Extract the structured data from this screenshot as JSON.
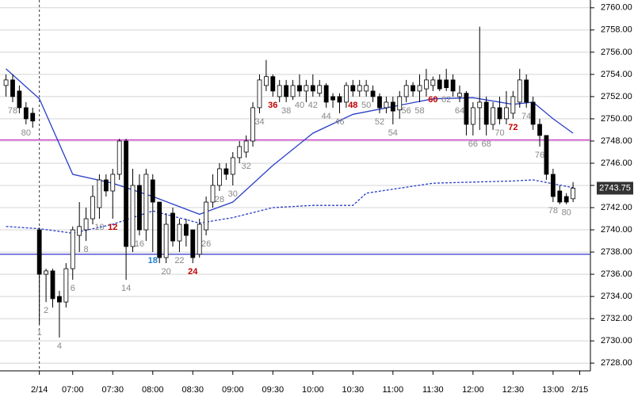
{
  "chart_data": {
    "type": "candlestick",
    "x": [
      -4,
      -3,
      -2,
      -1,
      0,
      1,
      2,
      3,
      4,
      5,
      6,
      7,
      8,
      9,
      10,
      11,
      12,
      13,
      14,
      15,
      16,
      17,
      18,
      19,
      20,
      21,
      22,
      23,
      24,
      25,
      26,
      27,
      28,
      29,
      30,
      31,
      32,
      33,
      34,
      35,
      36,
      37,
      38,
      39,
      40,
      41,
      42,
      43,
      44,
      45,
      46,
      47,
      48,
      49,
      50,
      51,
      52,
      53,
      54,
      55,
      56,
      57,
      58,
      59,
      60,
      61,
      62,
      63,
      64,
      65,
      66,
      67,
      68,
      69,
      70,
      71,
      72,
      73,
      74,
      75,
      76,
      77,
      78,
      79,
      80,
      81
    ],
    "open": [
      2753,
      2753.5,
      2752.5,
      2751,
      2750.5,
      2740,
      2736,
      2736.3,
      2734,
      2733.5,
      2736.5,
      2739.5,
      2740,
      2741,
      2742,
      2744.5,
      2743.5,
      2745,
      2748,
      2738.5,
      2744,
      2740,
      2744.5,
      2742.5,
      2737.5,
      2741.5,
      2739,
      2740.5,
      2740,
      2737.8,
      2740,
      2742.5,
      2744,
      2745.5,
      2745,
      2746.5,
      2747,
      2748,
      2751,
      2753,
      2753.8,
      2752,
      2753,
      2752,
      2753,
      2752.5,
      2753,
      2752.3,
      2753,
      2752,
      2752,
      2751.5,
      2753,
      2752.5,
      2752.5,
      2752.5,
      2752,
      2751,
      2751.5,
      2750.8,
      2752,
      2753,
      2752.5,
      2752.7,
      2753,
      2753.5,
      2753.5,
      2753.5,
      2752,
      2752.3,
      2749.5,
      2751,
      2751.5,
      2749.5,
      2751,
      2750,
      2750.5,
      2751.5,
      2753.5,
      2751.5,
      2749.5,
      2748.5,
      2745,
      2743.5,
      2743,
      2742.8
    ],
    "high": [
      2754,
      2754,
      2753,
      2751.5,
      2751,
      2740.2,
      2736.5,
      2736.5,
      2734.5,
      2737,
      2740.3,
      2742.5,
      2742,
      2744,
      2745,
      2745,
      2745.5,
      2748.2,
      2748.2,
      2745.5,
      2745,
      2745.5,
      2745,
      2742.5,
      2741.5,
      2742,
      2741,
      2741,
      2740,
      2741,
      2743,
      2745,
      2746,
      2746,
      2747,
      2748,
      2748.5,
      2751.5,
      2754,
      2755.3,
      2754,
      2753.5,
      2753.5,
      2753.5,
      2754,
      2753.5,
      2754,
      2753.5,
      2753.2,
      2752.3,
      2752.3,
      2753.3,
      2753.5,
      2753.5,
      2753.5,
      2753,
      2752.3,
      2752,
      2752,
      2752.5,
      2753.5,
      2753.3,
      2754,
      2754.5,
      2753.8,
      2754,
      2754.5,
      2754,
      2753,
      2752.5,
      2751.5,
      2758.3,
      2752,
      2751.5,
      2752,
      2752.5,
      2752.5,
      2754.5,
      2754,
      2752,
      2750,
      2748.5,
      2745.5,
      2744,
      2743.3,
      2744.3
    ],
    "low": [
      2752,
      2751.5,
      2750.5,
      2749.5,
      2749.2,
      2731.5,
      2733.5,
      2733,
      2730.3,
      2733,
      2735.5,
      2738,
      2739,
      2740.5,
      2741,
      2743,
      2741,
      2744.5,
      2735.5,
      2738,
      2739.5,
      2739,
      2738,
      2737,
      2737,
      2738.5,
      2738,
      2738.5,
      2737,
      2737.5,
      2739.5,
      2742,
      2743.5,
      2744.5,
      2744,
      2746,
      2746.5,
      2747.5,
      2750.5,
      2752.5,
      2752,
      2751.5,
      2751.5,
      2751.7,
      2752,
      2751.5,
      2752,
      2752,
      2751,
      2751,
      2750.5,
      2751,
      2752,
      2752,
      2752,
      2751.5,
      2750.5,
      2750.5,
      2749.5,
      2750,
      2751.5,
      2752,
      2751.5,
      2752,
      2752.5,
      2752.5,
      2752.5,
      2752,
      2751.5,
      2748.5,
      2748.5,
      2749,
      2748.5,
      2749,
      2749.5,
      2749.5,
      2750,
      2751,
      2751,
      2749,
      2747.5,
      2744.5,
      2742.5,
      2742.3,
      2742.3,
      2742.5
    ],
    "close": [
      2753.5,
      2752,
      2751,
      2750,
      2749.8,
      2736,
      2736.3,
      2733.8,
      2733.5,
      2736.5,
      2740,
      2740.3,
      2741,
      2743,
      2744.5,
      2743.5,
      2745,
      2748,
      2738.5,
      2744,
      2740,
      2745,
      2742.5,
      2737.5,
      2740.5,
      2739,
      2740.5,
      2739.5,
      2737.5,
      2740.5,
      2742.5,
      2744,
      2745.5,
      2745,
      2746.5,
      2747.5,
      2748,
      2751,
      2753.5,
      2753.8,
      2752.5,
      2753,
      2752,
      2753,
      2752.5,
      2753,
      2752.5,
      2753,
      2751.5,
      2751.7,
      2751.5,
      2753,
      2752.5,
      2753,
      2753,
      2752,
      2751,
      2751.5,
      2750.7,
      2752,
      2753,
      2752.5,
      2753,
      2753.5,
      2753.5,
      2752.7,
      2752.8,
      2752.5,
      2752.3,
      2749.5,
      2751,
      2751.5,
      2749.5,
      2751,
      2750,
      2751,
      2752,
      2753.5,
      2751.5,
      2749.5,
      2748.5,
      2745,
      2743,
      2742.5,
      2742.5,
      2743.75
    ],
    "up_color": "#ffffff",
    "down_color": "#000000",
    "edge_color": "#000000",
    "lines": [
      {
        "color": "#2a3fc8",
        "dash": false,
        "x": [
          -4,
          1,
          6,
          12,
          18,
          25,
          30,
          36,
          42,
          48,
          60,
          66,
          72,
          75,
          78,
          81
        ],
        "values": [
          2754.5,
          2751.8,
          2745,
          2744.2,
          2743,
          2741.4,
          2742.5,
          2745.8,
          2748.7,
          2750.4,
          2751.8,
          2751.9,
          2751.3,
          2751.5,
          2750,
          2748.7
        ]
      },
      {
        "color": "#2a3fc8",
        "dash": true,
        "x": [
          -4,
          1,
          6,
          12,
          18,
          25,
          30,
          36,
          42,
          48,
          50,
          60,
          72,
          75,
          81
        ],
        "values": [
          2740.3,
          2740.1,
          2739.7,
          2740.5,
          2741.7,
          2740.6,
          2741.1,
          2742,
          2742.2,
          2742.2,
          2743.3,
          2744.2,
          2744.4,
          2744.5,
          2743.8
        ]
      }
    ],
    "hlines": [
      {
        "value": 2748.1,
        "color": "#d040d0"
      },
      {
        "value": 2737.8,
        "color": "#3333cc"
      }
    ],
    "last_price": {
      "value": 2743.75,
      "label": "2743.75"
    },
    "bar_labels": [
      {
        "x": -3,
        "text": "78",
        "color": "#888888"
      },
      {
        "x": -1,
        "text": "80",
        "color": "#888888"
      },
      {
        "x": 1,
        "text": "1",
        "color": "#888888"
      },
      {
        "x": 2,
        "text": "2",
        "color": "#888888"
      },
      {
        "x": 4,
        "text": "4",
        "color": "#888888"
      },
      {
        "x": 6,
        "text": "6",
        "color": "#888888"
      },
      {
        "x": 8,
        "text": "8",
        "color": "#888888"
      },
      {
        "x": 10,
        "text": "10",
        "color": "#888888"
      },
      {
        "x": 12,
        "text": "12",
        "color": "#c00000"
      },
      {
        "x": 14,
        "text": "14",
        "color": "#888888"
      },
      {
        "x": 16,
        "text": "16",
        "color": "#888888"
      },
      {
        "x": 18,
        "text": "18",
        "color": "#1f7fd0"
      },
      {
        "x": 20,
        "text": "20",
        "color": "#888888"
      },
      {
        "x": 22,
        "text": "22",
        "color": "#888888"
      },
      {
        "x": 24,
        "text": "24",
        "color": "#c00000"
      },
      {
        "x": 26,
        "text": "26",
        "color": "#888888"
      },
      {
        "x": 28,
        "text": "28",
        "color": "#888888"
      },
      {
        "x": 30,
        "text": "30",
        "color": "#888888"
      },
      {
        "x": 32,
        "text": "32",
        "color": "#888888"
      },
      {
        "x": 34,
        "text": "34",
        "color": "#888888"
      },
      {
        "x": 36,
        "text": "36",
        "color": "#c00000"
      },
      {
        "x": 38,
        "text": "38",
        "color": "#888888"
      },
      {
        "x": 40,
        "text": "40",
        "color": "#888888"
      },
      {
        "x": 42,
        "text": "42",
        "color": "#888888"
      },
      {
        "x": 44,
        "text": "44",
        "color": "#888888"
      },
      {
        "x": 46,
        "text": "46",
        "color": "#888888"
      },
      {
        "x": 48,
        "text": "48",
        "color": "#c00000"
      },
      {
        "x": 50,
        "text": "50",
        "color": "#888888"
      },
      {
        "x": 52,
        "text": "52",
        "color": "#888888"
      },
      {
        "x": 54,
        "text": "54",
        "color": "#888888"
      },
      {
        "x": 56,
        "text": "56",
        "color": "#888888"
      },
      {
        "x": 58,
        "text": "58",
        "color": "#888888"
      },
      {
        "x": 60,
        "text": "60",
        "color": "#c00000"
      },
      {
        "x": 62,
        "text": "62",
        "color": "#888888"
      },
      {
        "x": 64,
        "text": "64",
        "color": "#888888"
      },
      {
        "x": 66,
        "text": "66",
        "color": "#888888"
      },
      {
        "x": 68,
        "text": "68",
        "color": "#888888"
      },
      {
        "x": 70,
        "text": "70",
        "color": "#888888"
      },
      {
        "x": 72,
        "text": "72",
        "color": "#c00000"
      },
      {
        "x": 74,
        "text": "74",
        "color": "#888888"
      },
      {
        "x": 76,
        "text": "76",
        "color": "#888888"
      },
      {
        "x": 78,
        "text": "78",
        "color": "#888888"
      },
      {
        "x": 80,
        "text": "80",
        "color": "#888888"
      }
    ],
    "xlim": [
      -4.9,
      83.6
    ],
    "xticks": [
      {
        "value": 1,
        "label": "2/14"
      },
      {
        "value": 6,
        "label": "07:00"
      },
      {
        "value": 12,
        "label": "07:30"
      },
      {
        "value": 18,
        "label": "08:00"
      },
      {
        "value": 24,
        "label": "08:30"
      },
      {
        "value": 30,
        "label": "09:00"
      },
      {
        "value": 36,
        "label": "09:30"
      },
      {
        "value": 42,
        "label": "10:00"
      },
      {
        "value": 48,
        "label": "10:30"
      },
      {
        "value": 54,
        "label": "11:00"
      },
      {
        "value": 60,
        "label": "11:30"
      },
      {
        "value": 66,
        "label": "12:00"
      },
      {
        "value": 72,
        "label": "12:30"
      },
      {
        "value": 78,
        "label": "13:00"
      },
      {
        "value": 82,
        "label": "2/15"
      }
    ],
    "ylim": [
      2727.3,
      2760.7
    ],
    "yticks": [
      {
        "value": 2728,
        "label": "2728.00"
      },
      {
        "value": 2730,
        "label": "2730.00"
      },
      {
        "value": 2732,
        "label": "2732.00"
      },
      {
        "value": 2734,
        "label": "2734.00"
      },
      {
        "value": 2736,
        "label": "2736.00"
      },
      {
        "value": 2738,
        "label": "2738.00"
      },
      {
        "value": 2740,
        "label": "2740.00"
      },
      {
        "value": 2742,
        "label": "2742.00"
      },
      {
        "value": 2744,
        "label": "2744.00"
      },
      {
        "value": 2746,
        "label": "2746.00"
      },
      {
        "value": 2748,
        "label": "2748.00"
      },
      {
        "value": 2750,
        "label": "2750.00"
      },
      {
        "value": 2752,
        "label": "2752.00"
      },
      {
        "value": 2754,
        "label": "2754.00"
      },
      {
        "value": 2756,
        "label": "2756.00"
      },
      {
        "value": 2758,
        "label": "2758.00"
      },
      {
        "value": 2760,
        "label": "2760.00"
      }
    ],
    "grid": true
  }
}
